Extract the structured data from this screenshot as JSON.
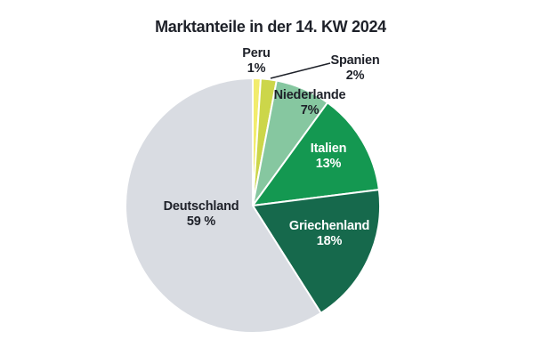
{
  "title": "Marktanteile in der 14. KW 2024",
  "text_color": "#1e2129",
  "background_color": "#ffffff",
  "chart_data": {
    "type": "pie",
    "title": "Marktanteile in der 14. KW 2024",
    "unit": "%",
    "start_angle_deg": 0,
    "direction": "clockwise",
    "stroke_color": "#ffffff",
    "slices": [
      {
        "label": "Peru",
        "value": 1,
        "pct_label": "1%",
        "color": "#f2ec6d",
        "label_style": "dark-outside"
      },
      {
        "label": "Spanien",
        "value": 2,
        "pct_label": "2%",
        "color": "#ccd64a",
        "label_style": "dark-outside-leader-line"
      },
      {
        "label": "Niederlande",
        "value": 7,
        "pct_label": "7%",
        "color": "#86c7a0",
        "label_style": "dark"
      },
      {
        "label": "Italien",
        "value": 13,
        "pct_label": "13%",
        "color": "#149851",
        "label_style": "white-inside"
      },
      {
        "label": "Griechenland",
        "value": 18,
        "pct_label": "18%",
        "color": "#16694c",
        "label_style": "white-inside"
      },
      {
        "label": "Deutschland",
        "value": 59,
        "pct_label": "59 %",
        "color": "#d9dce2",
        "label_style": "dark-inside"
      }
    ]
  }
}
